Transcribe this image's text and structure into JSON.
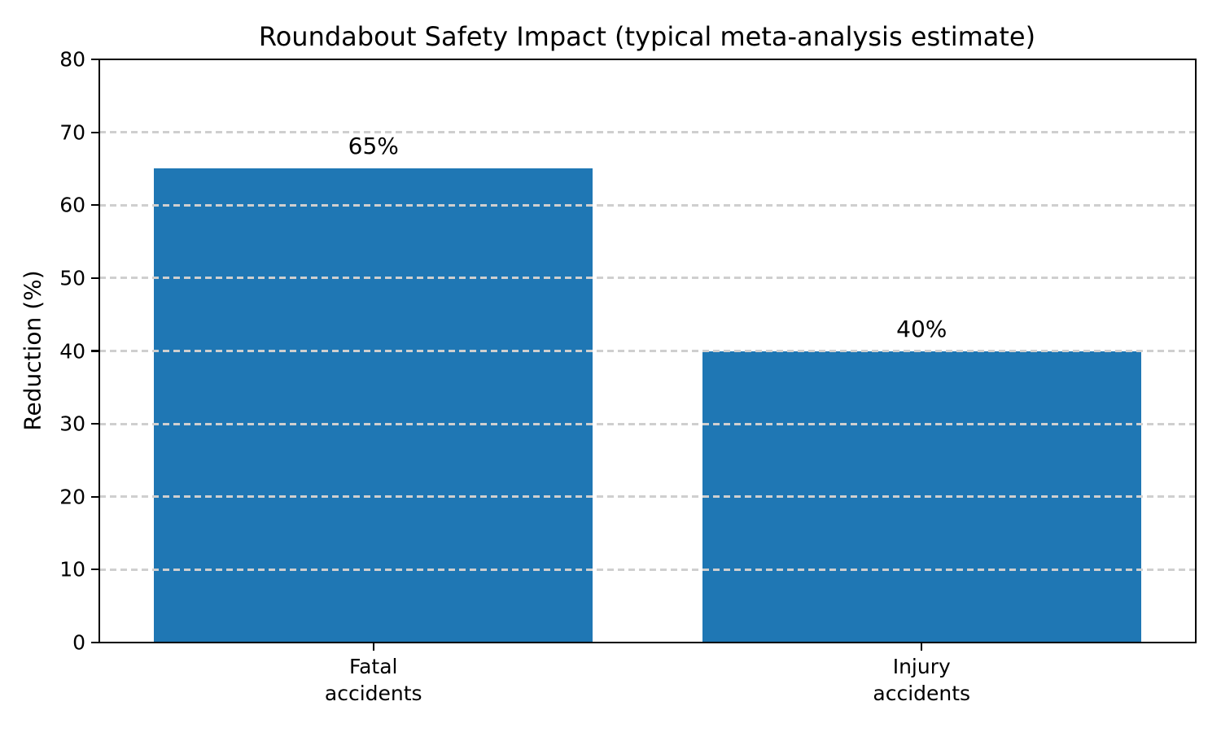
{
  "chart_data": {
    "type": "bar",
    "title": "Roundabout Safety Impact (typical meta-analysis estimate)",
    "xlabel": "",
    "ylabel": "Reduction (%)",
    "categories": [
      "Fatal\naccidents",
      "Injury\naccidents"
    ],
    "values": [
      65,
      40
    ],
    "bar_labels": [
      "65%",
      "40%"
    ],
    "yticks": [
      0,
      10,
      20,
      30,
      40,
      50,
      60,
      70,
      80
    ],
    "ylim": [
      0,
      80
    ],
    "bar_width_fraction": 0.8,
    "bar_color": "#1f77b4",
    "grid_color": "#cfcfcf",
    "grid_style": "dashed",
    "grid_axis": "y",
    "grid_above_bars": true,
    "axis_color": "#000000",
    "text_color": "#000000",
    "background_color": "#ffffff",
    "legend": null
  }
}
